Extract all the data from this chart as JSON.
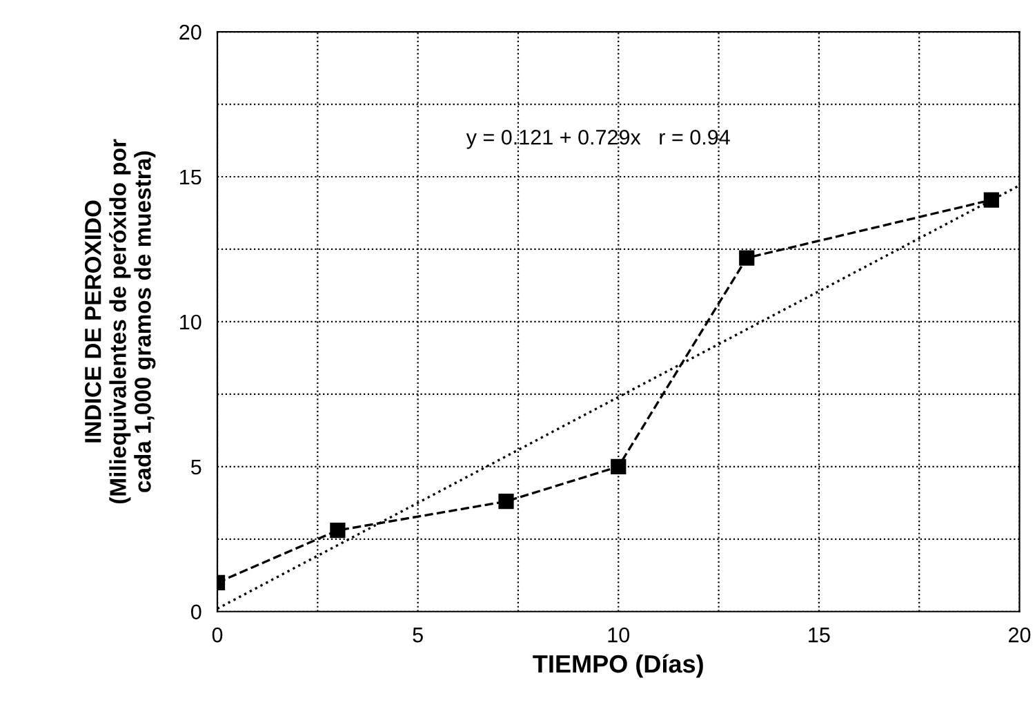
{
  "chart_data": {
    "type": "line",
    "xlabel": "TIEMPO (Días)",
    "ylabel": "INDICE DE PEROXIDO\n(Miliequivalentes de peróxido por\ncada 1,000 gramos de muestra)",
    "series": [
      {
        "color": "#000000",
        "x": [
          0,
          3,
          7.2,
          10,
          13.2,
          19.3
        ],
        "values": [
          1.0,
          2.8,
          3.8,
          5.0,
          12.2,
          14.2
        ],
        "marker": "square",
        "line_style": "dashed"
      },
      {
        "color": "#000000",
        "x": [
          0,
          20
        ],
        "values": [
          0.1,
          14.7
        ],
        "marker": "none",
        "line_style": "dotted"
      }
    ],
    "annotations": [
      "y = 0.121 + 0.729x   r = 0.94"
    ],
    "xlim": [
      0,
      20
    ],
    "ylim": [
      0,
      20
    ],
    "xticks": [
      0,
      {
        "value": 2.5,
        "label": null
      },
      5,
      {
        "value": 7.5,
        "label": null
      },
      10,
      {
        "value": 12.5,
        "label": null
      },
      15,
      {
        "value": 17.5,
        "label": null
      },
      20
    ],
    "yticks": [
      0,
      {
        "value": 2.5,
        "label": null
      },
      5,
      {
        "value": 7.5,
        "label": null
      },
      10,
      {
        "value": 12.5,
        "label": null
      },
      15,
      {
        "value": 17.5,
        "label": null
      },
      20
    ],
    "grid": true
  }
}
